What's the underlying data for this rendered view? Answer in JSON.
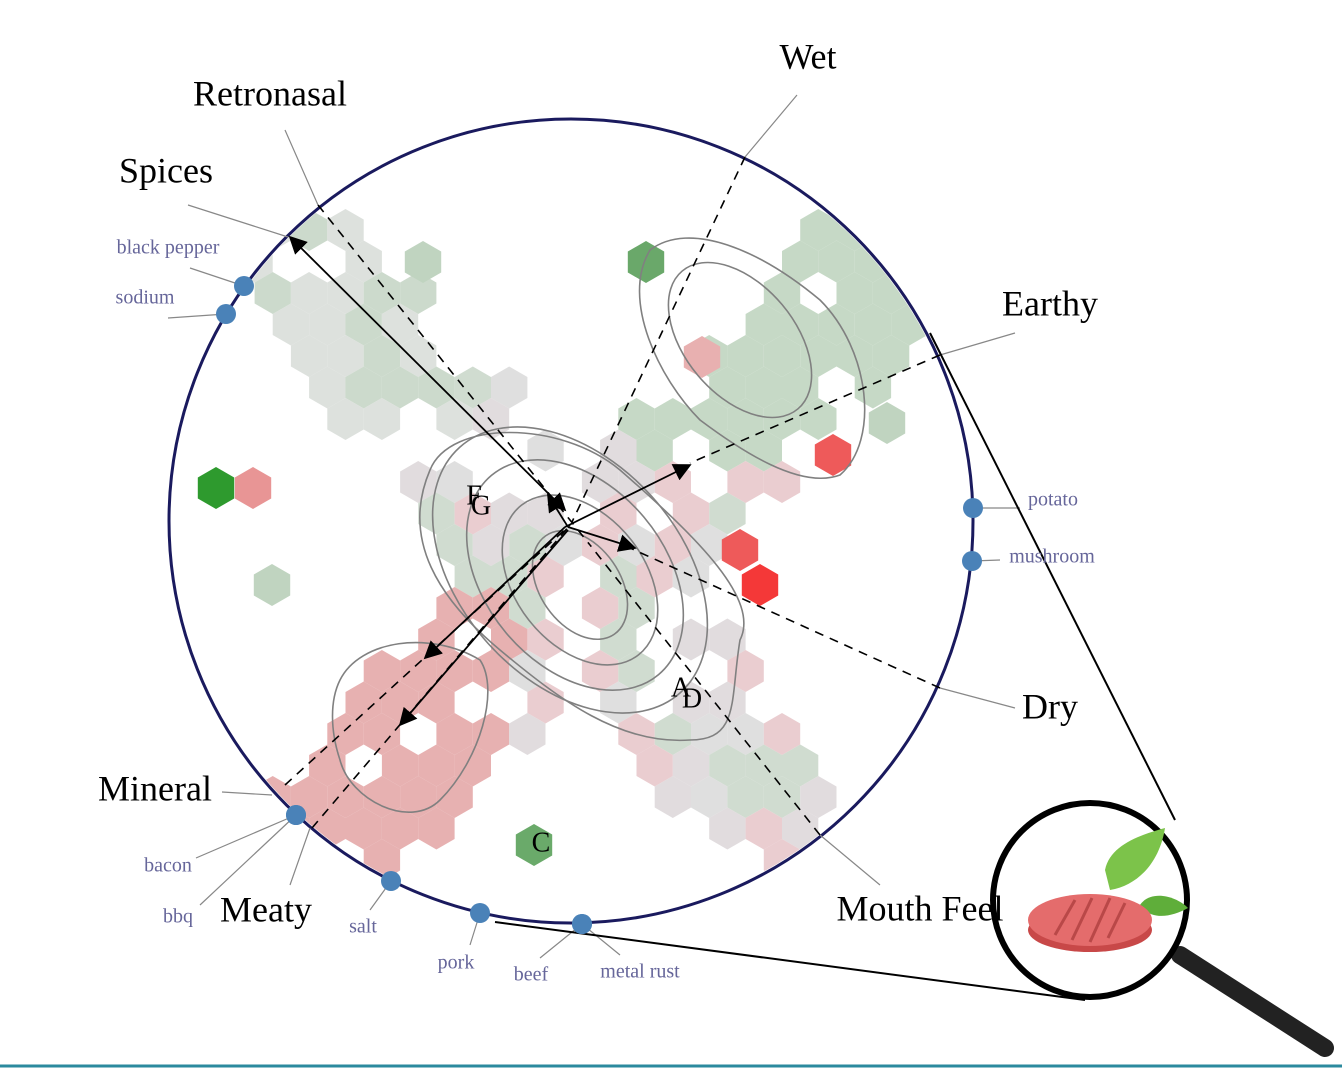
{
  "axes": [
    {
      "label": "Wet"
    },
    {
      "label": "Retronasal"
    },
    {
      "label": "Spices"
    },
    {
      "label": "Earthy"
    },
    {
      "label": "Dry"
    },
    {
      "label": "Mouth Feel"
    },
    {
      "label": "Meaty"
    },
    {
      "label": "Mineral"
    }
  ],
  "ingredients": [
    {
      "label": "black pepper"
    },
    {
      "label": "sodium"
    },
    {
      "label": "potato"
    },
    {
      "label": "mushroom"
    },
    {
      "label": "bacon"
    },
    {
      "label": "bbq"
    },
    {
      "label": "salt"
    },
    {
      "label": "pork"
    },
    {
      "label": "beef"
    },
    {
      "label": "metal rust"
    }
  ],
  "points": [
    {
      "label": "F"
    },
    {
      "label": "G"
    },
    {
      "label": "A"
    },
    {
      "label": "D"
    },
    {
      "label": "C"
    }
  ]
}
